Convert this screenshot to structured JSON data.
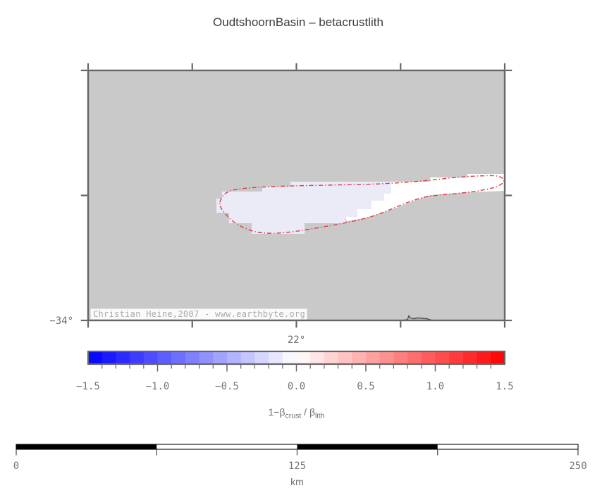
{
  "title": "OudtshoornBasin – betacrustlith",
  "map": {
    "watermark": "Christian Heine,2007 - www.earthbyte.org",
    "x_tick_label": "22°",
    "y_tick_label": "−34°",
    "colors": {
      "land_background": "#c9c9c9",
      "basin_negative_fill": "#ebebf8",
      "basin_zero_fill": "#ffffff",
      "basin_outline": "#dd3a43",
      "frame": "#666666",
      "coastline": "#4d4d4d"
    }
  },
  "colorbar": {
    "range": [
      -1.5,
      1.5
    ],
    "n_cells": 30,
    "tick_labels": [
      "−1.5",
      "−1.0",
      "−0.5",
      "0.0",
      "0.5",
      "1.0",
      "1.5"
    ],
    "tick_values": [
      -1.5,
      -1.0,
      -0.5,
      0.0,
      0.5,
      1.0,
      1.5
    ],
    "label": {
      "p1": "1−β",
      "s1": "crust",
      "p2": " / β",
      "s2": "lith"
    },
    "colors": [
      "#0909ff",
      "#1a1aff",
      "#2b2bff",
      "#3c3cff",
      "#4d4dff",
      "#5e5eff",
      "#6f6fff",
      "#8080ff",
      "#9191ff",
      "#a2a2ff",
      "#b3b3ff",
      "#c4c4ff",
      "#d5d5ff",
      "#e6e6ff",
      "#f7f7ff",
      "#fff6f6",
      "#ffe5e5",
      "#ffd4d4",
      "#ffc3c3",
      "#ffb2b2",
      "#ffa1a1",
      "#ff9090",
      "#ff7f7f",
      "#ff6e6e",
      "#ff5d5d",
      "#ff4c4c",
      "#ff3b3b",
      "#ff2a2a",
      "#ff1919",
      "#ff0808"
    ]
  },
  "scalebar": {
    "tick_labels": [
      "0",
      "125",
      "250"
    ],
    "unit": "km"
  }
}
